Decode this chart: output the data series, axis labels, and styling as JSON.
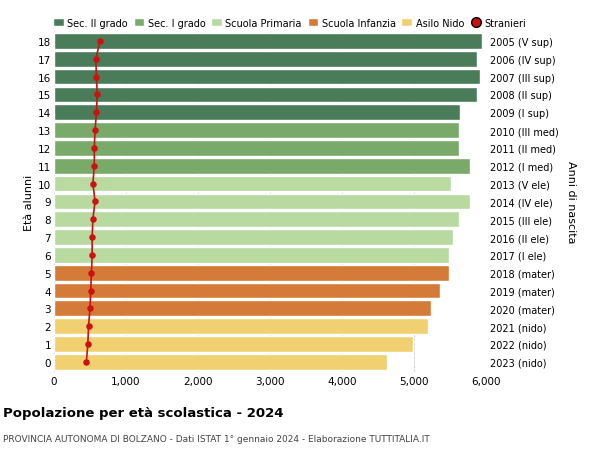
{
  "ages": [
    18,
    17,
    16,
    15,
    14,
    13,
    12,
    11,
    10,
    9,
    8,
    7,
    6,
    5,
    4,
    3,
    2,
    1,
    0
  ],
  "years": [
    "2005 (V sup)",
    "2006 (IV sup)",
    "2007 (III sup)",
    "2008 (II sup)",
    "2009 (I sup)",
    "2010 (III med)",
    "2011 (II med)",
    "2012 (I med)",
    "2013 (V ele)",
    "2014 (IV ele)",
    "2015 (III ele)",
    "2016 (II ele)",
    "2017 (I ele)",
    "2018 (mater)",
    "2019 (mater)",
    "2020 (mater)",
    "2021 (nido)",
    "2022 (nido)",
    "2023 (nido)"
  ],
  "bar_values": [
    5950,
    5870,
    5920,
    5870,
    5640,
    5630,
    5620,
    5780,
    5520,
    5780,
    5620,
    5540,
    5490,
    5490,
    5360,
    5230,
    5200,
    4990,
    4620
  ],
  "stranieri_values": [
    640,
    580,
    590,
    600,
    590,
    570,
    560,
    560,
    540,
    570,
    540,
    530,
    530,
    520,
    510,
    500,
    480,
    470,
    450
  ],
  "bar_colors": [
    "#4a7c59",
    "#4a7c59",
    "#4a7c59",
    "#4a7c59",
    "#4a7c59",
    "#7aaa6a",
    "#7aaa6a",
    "#7aaa6a",
    "#b8d9a0",
    "#b8d9a0",
    "#b8d9a0",
    "#b8d9a0",
    "#b8d9a0",
    "#d47b3a",
    "#d47b3a",
    "#d47b3a",
    "#f0d070",
    "#f0d070",
    "#f0d070"
  ],
  "legend_labels": [
    "Sec. II grado",
    "Sec. I grado",
    "Scuola Primaria",
    "Scuola Infanzia",
    "Asilo Nido",
    "Stranieri"
  ],
  "legend_colors": [
    "#4a7c59",
    "#7aaa6a",
    "#b8d9a0",
    "#d47b3a",
    "#f0d070",
    "#cc1111"
  ],
  "stranieri_color": "#cc1111",
  "ylabel": "Età alunni",
  "right_ylabel": "Anni di nascita",
  "title": "Popolazione per età scolastica - 2024",
  "subtitle": "PROVINCIA AUTONOMA DI BOLZANO - Dati ISTAT 1° gennaio 2024 - Elaborazione TUTTITALIA.IT",
  "xlim": [
    0,
    6000
  ],
  "xticks": [
    0,
    1000,
    2000,
    3000,
    4000,
    5000,
    6000
  ],
  "xtick_labels": [
    "0",
    "1,000",
    "2,000",
    "3,000",
    "4,000",
    "5,000",
    "6,000"
  ],
  "bg_color": "#ffffff",
  "bar_edge_color": "#ffffff",
  "grid_color": "#cccccc"
}
